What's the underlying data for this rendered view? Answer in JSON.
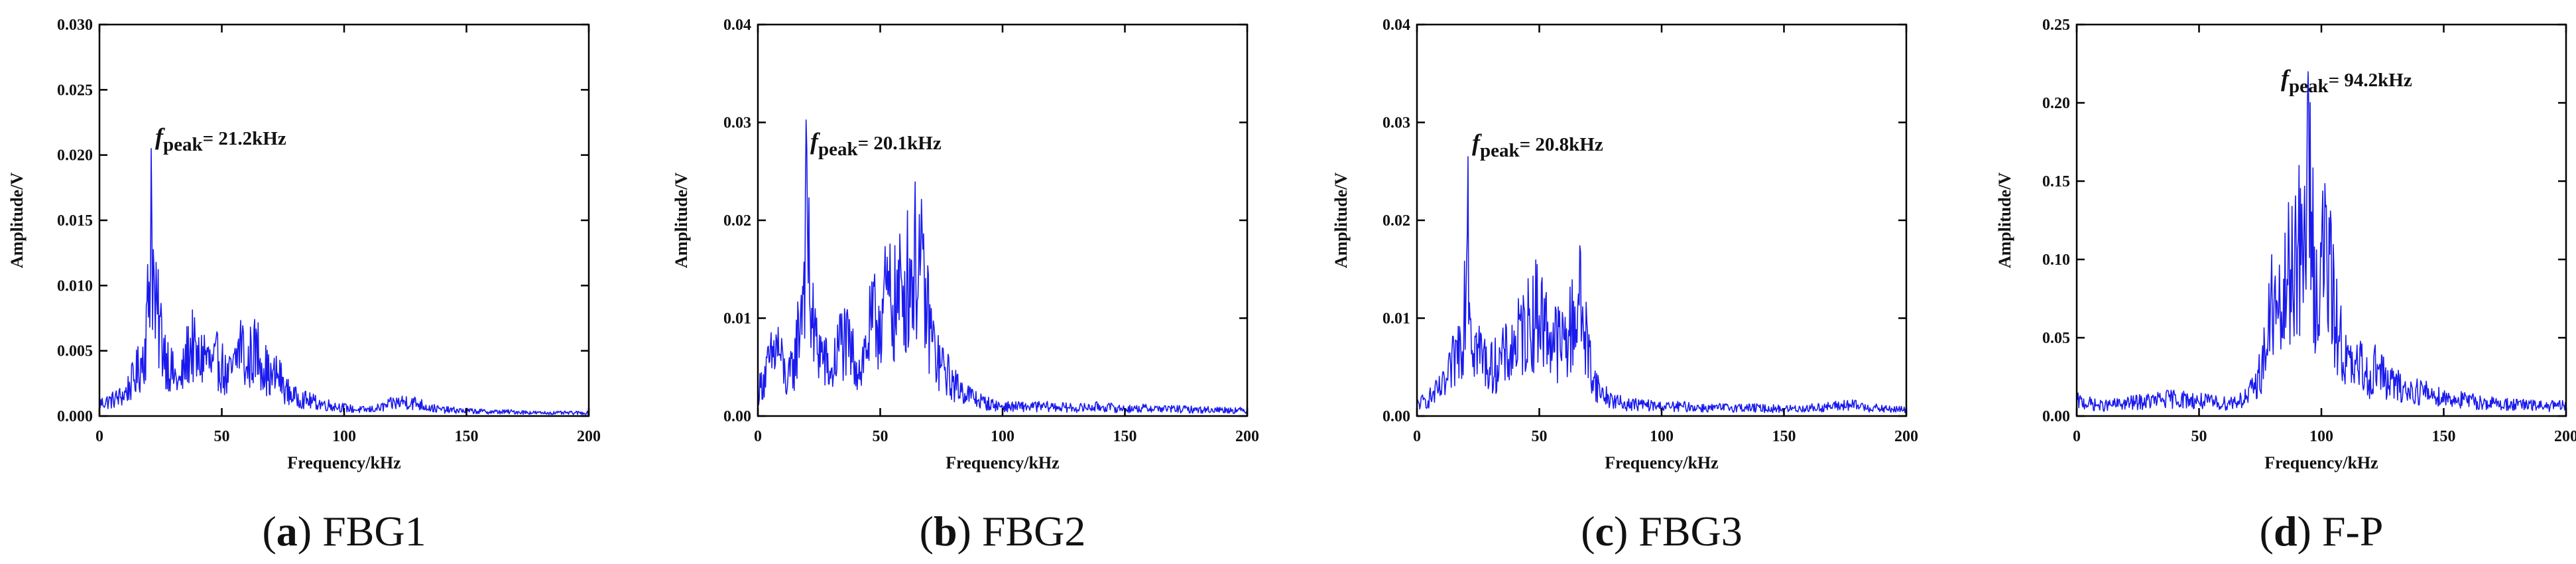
{
  "figure": {
    "panels": [
      {
        "letter": "a",
        "label": "FBG1"
      },
      {
        "letter": "b",
        "label": "FBG2"
      },
      {
        "letter": "c",
        "label": "FBG3"
      },
      {
        "letter": "d",
        "label": "F-P"
      }
    ]
  },
  "chart_data": [
    {
      "type": "line",
      "title": "",
      "caption": "(a) FBG1",
      "xlabel": "Frequency/kHz",
      "ylabel": "Amplitude/V",
      "xlim": [
        0,
        200
      ],
      "ylim": [
        0,
        0.03
      ],
      "xticks": [
        "0",
        "50",
        "100",
        "150",
        "200"
      ],
      "yticks": [
        "0.000",
        "0.005",
        "0.010",
        "0.015",
        "0.020",
        "0.025",
        "0.030"
      ],
      "series_color": "#1a1aee",
      "annotation": {
        "symbol": "f",
        "subscript": "peak",
        "text": "= 21.2kHz",
        "x": 21.2,
        "y": 0.0205
      },
      "series": [
        {
          "name": "FBG1 spectrum",
          "x": [
            0,
            5,
            10,
            14,
            17,
            19,
            20,
            21.2,
            22.5,
            24,
            27,
            30,
            33,
            36,
            38,
            40,
            43,
            46,
            49,
            52,
            55,
            58,
            60,
            62,
            65,
            68,
            70,
            73,
            76,
            80,
            85,
            90,
            95,
            100,
            105,
            110,
            115,
            120,
            125,
            130,
            135,
            140,
            150,
            160,
            170,
            180,
            190,
            200
          ],
          "y": [
            0.0012,
            0.0015,
            0.002,
            0.0035,
            0.005,
            0.0075,
            0.011,
            0.0205,
            0.01,
            0.009,
            0.006,
            0.004,
            0.003,
            0.006,
            0.0068,
            0.005,
            0.006,
            0.0045,
            0.0055,
            0.0035,
            0.0045,
            0.0075,
            0.004,
            0.006,
            0.0062,
            0.0045,
            0.0035,
            0.004,
            0.0025,
            0.0018,
            0.0015,
            0.0012,
            0.001,
            0.0008,
            0.0006,
            0.0006,
            0.0008,
            0.0012,
            0.0014,
            0.0012,
            0.0008,
            0.0006,
            0.0005,
            0.0004,
            0.0004,
            0.0003,
            0.0003,
            0.0003
          ]
        }
      ]
    },
    {
      "type": "line",
      "title": "",
      "caption": "(b) FBG2",
      "xlabel": "Frequency/kHz",
      "ylabel": "Amplitude/V",
      "xlim": [
        0,
        200
      ],
      "ylim": [
        0,
        0.04
      ],
      "xticks": [
        "0",
        "50",
        "100",
        "150",
        "200"
      ],
      "yticks": [
        "0.00",
        "0.01",
        "0.02",
        "0.03",
        "0.04"
      ],
      "series_color": "#1a1aee",
      "annotation": {
        "symbol": "f",
        "subscript": "peak",
        "text": "= 20.1kHz",
        "x": 20.1,
        "y": 0.0272
      },
      "series": [
        {
          "name": "FBG2 spectrum",
          "x": [
            0,
            4,
            8,
            12,
            15,
            17,
            18.5,
            20.1,
            21.5,
            23,
            26,
            30,
            34,
            38,
            42,
            46,
            50,
            53,
            56,
            59,
            62,
            64,
            65,
            66,
            68,
            70,
            73,
            76,
            80,
            85,
            90,
            95,
            100,
            110,
            120,
            130,
            140,
            150,
            160,
            170,
            180,
            190,
            200
          ],
          "y": [
            0.003,
            0.006,
            0.009,
            0.004,
            0.007,
            0.012,
            0.017,
            0.0272,
            0.014,
            0.01,
            0.008,
            0.005,
            0.01,
            0.008,
            0.006,
            0.011,
            0.013,
            0.015,
            0.014,
            0.016,
            0.018,
            0.019,
            0.0205,
            0.02,
            0.015,
            0.012,
            0.007,
            0.006,
            0.004,
            0.003,
            0.002,
            0.0015,
            0.0012,
            0.0012,
            0.0012,
            0.001,
            0.0012,
            0.0009,
            0.001,
            0.0009,
            0.0008,
            0.0008,
            0.0007
          ]
        }
      ]
    },
    {
      "type": "line",
      "title": "",
      "caption": "(c) FBG3",
      "xlabel": "Frequency/kHz",
      "ylabel": "Amplitude/V",
      "xlim": [
        0,
        200
      ],
      "ylim": [
        0,
        0.04
      ],
      "xticks": [
        "0",
        "50",
        "100",
        "150",
        "200"
      ],
      "yticks": [
        "0.00",
        "0.01",
        "0.02",
        "0.03",
        "0.04"
      ],
      "series_color": "#1a1aee",
      "annotation": {
        "symbol": "f",
        "subscript": "peak",
        "text": "= 20.8kHz",
        "x": 20.8,
        "y": 0.0265
      },
      "series": [
        {
          "name": "FBG3 spectrum",
          "x": [
            0,
            4,
            8,
            12,
            15,
            17,
            19,
            20.8,
            22,
            24,
            27,
            30,
            34,
            38,
            42,
            46,
            50,
            53,
            56,
            59,
            62,
            64,
            66,
            67,
            69,
            72,
            75,
            80,
            85,
            90,
            100,
            110,
            120,
            130,
            140,
            150,
            160,
            165,
            170,
            175,
            180,
            190,
            200
          ],
          "y": [
            0.0015,
            0.002,
            0.003,
            0.004,
            0.007,
            0.009,
            0.012,
            0.0265,
            0.012,
            0.009,
            0.0075,
            0.006,
            0.007,
            0.008,
            0.01,
            0.012,
            0.0135,
            0.011,
            0.01,
            0.009,
            0.0105,
            0.012,
            0.0155,
            0.014,
            0.01,
            0.005,
            0.003,
            0.002,
            0.0015,
            0.0015,
            0.0012,
            0.0012,
            0.001,
            0.0011,
            0.001,
            0.0009,
            0.001,
            0.0011,
            0.0012,
            0.0014,
            0.0013,
            0.0009,
            0.0008
          ]
        }
      ]
    },
    {
      "type": "line",
      "title": "",
      "caption": "(d) F-P",
      "xlabel": "Frequency/kHz",
      "ylabel": "Amplitude/V",
      "xlim": [
        0,
        200
      ],
      "ylim": [
        0,
        0.25
      ],
      "xticks": [
        "0",
        "50",
        "100",
        "150",
        "200"
      ],
      "yticks": [
        "0.00",
        "0.05",
        "0.10",
        "0.15",
        "0.20",
        "0.25"
      ],
      "series_color": "#1a1aee",
      "annotation": {
        "symbol": "f",
        "subscript": "peak",
        "text": "= 94.2kHz",
        "x": 94.2,
        "y": 0.2
      },
      "series": [
        {
          "name": "F-P spectrum",
          "x": [
            0,
            10,
            20,
            30,
            40,
            50,
            60,
            65,
            70,
            73,
            75,
            78,
            80,
            82,
            84,
            86,
            88,
            90,
            91,
            92,
            93,
            94.2,
            95,
            96,
            97,
            98,
            100,
            102,
            104,
            106,
            108,
            110,
            113,
            116,
            120,
            123,
            126,
            130,
            135,
            140,
            150,
            160,
            170,
            180,
            190,
            200
          ],
          "y": [
            0.012,
            0.008,
            0.01,
            0.012,
            0.014,
            0.012,
            0.01,
            0.012,
            0.015,
            0.025,
            0.035,
            0.06,
            0.095,
            0.075,
            0.08,
            0.105,
            0.12,
            0.145,
            0.13,
            0.11,
            0.14,
            0.2,
            0.185,
            0.15,
            0.12,
            0.095,
            0.12,
            0.135,
            0.1,
            0.075,
            0.06,
            0.045,
            0.035,
            0.04,
            0.03,
            0.042,
            0.028,
            0.025,
            0.02,
            0.02,
            0.015,
            0.012,
            0.01,
            0.009,
            0.008,
            0.008
          ]
        }
      ]
    }
  ]
}
